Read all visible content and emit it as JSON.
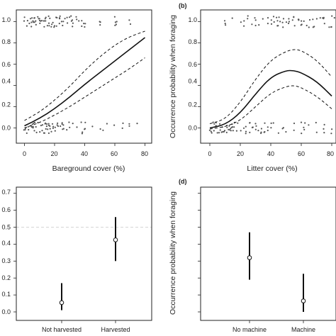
{
  "chart_data": [
    {
      "type": "line",
      "panel_label": "",
      "xlabel": "Bareground cover (%)",
      "ylabel": "",
      "xlim": [
        -3,
        88
      ],
      "ylim": [
        -0.07,
        1.07
      ],
      "xticks": [
        "0",
        "20",
        "40",
        "60",
        "80"
      ],
      "yticks": [
        "0.0",
        "0.2",
        "0.4",
        "0.6",
        "0.8",
        "1.0"
      ],
      "series": [
        {
          "style": "solid",
          "x": [
            0,
            10,
            20,
            30,
            40,
            50,
            60,
            70,
            80,
            85
          ],
          "y": [
            0.02,
            0.09,
            0.18,
            0.29,
            0.41,
            0.52,
            0.63,
            0.74,
            0.85,
            0.91
          ]
        },
        {
          "style": "dashed",
          "x": [
            0,
            10,
            20,
            30,
            40,
            50,
            60,
            70,
            80,
            85
          ],
          "y": [
            0.07,
            0.15,
            0.26,
            0.39,
            0.54,
            0.67,
            0.78,
            0.86,
            0.91,
            0.93
          ]
        },
        {
          "style": "dashed",
          "x": [
            0,
            10,
            20,
            30,
            40,
            50,
            60,
            70,
            80,
            85
          ],
          "y": [
            0.0,
            0.05,
            0.12,
            0.2,
            0.29,
            0.38,
            0.47,
            0.56,
            0.66,
            0.73
          ]
        }
      ],
      "points_top": [
        0,
        2,
        3,
        4,
        5,
        6,
        7,
        8,
        9,
        10,
        11,
        12,
        13,
        14,
        15,
        16,
        17,
        18,
        19,
        20,
        21,
        22,
        23,
        24,
        25,
        26,
        27,
        28,
        29,
        30,
        31,
        32,
        34,
        35,
        36,
        38,
        39,
        40,
        50,
        60,
        61,
        70
      ],
      "points_bottom": [
        0,
        1,
        2,
        3,
        4,
        5,
        6,
        7,
        8,
        9,
        10,
        11,
        12,
        13,
        14,
        15,
        16,
        17,
        18,
        19,
        20,
        22,
        24,
        25,
        26,
        28,
        30,
        32,
        35,
        38,
        40,
        45,
        50,
        52,
        55,
        60,
        65,
        70,
        75,
        85
      ]
    },
    {
      "type": "line",
      "panel_label": "(b)",
      "xlabel": "Litter cover (%)",
      "ylabel": "Occurrence probability when foraging",
      "xlim": [
        -3,
        85
      ],
      "ylim": [
        -0.07,
        1.07
      ],
      "xticks": [
        "0",
        "20",
        "40",
        "60",
        "80"
      ],
      "yticks": [
        "0.0",
        "0.2",
        "0.4",
        "0.6",
        "0.8",
        "1.0"
      ],
      "series": [
        {
          "style": "solid",
          "x": [
            0,
            10,
            20,
            30,
            40,
            50,
            55,
            60,
            70,
            80,
            85
          ],
          "y": [
            0.0,
            0.03,
            0.14,
            0.32,
            0.48,
            0.54,
            0.54,
            0.52,
            0.44,
            0.3,
            0.22
          ]
        },
        {
          "style": "dashed",
          "x": [
            0,
            10,
            20,
            30,
            40,
            50,
            55,
            60,
            70,
            80,
            85
          ],
          "y": [
            0.04,
            0.08,
            0.24,
            0.46,
            0.64,
            0.72,
            0.74,
            0.73,
            0.64,
            0.48,
            0.38
          ]
        },
        {
          "style": "dashed",
          "x": [
            0,
            10,
            20,
            30,
            40,
            50,
            55,
            60,
            70,
            80,
            85
          ],
          "y": [
            -0.01,
            0.01,
            0.07,
            0.2,
            0.33,
            0.39,
            0.4,
            0.38,
            0.3,
            0.18,
            0.11
          ]
        }
      ],
      "points_top": [
        10,
        15,
        20,
        22,
        25,
        28,
        30,
        32,
        35,
        38,
        40,
        42,
        44,
        45,
        46,
        48,
        50,
        52,
        54,
        55,
        56,
        58,
        60,
        62,
        64,
        65,
        66,
        68,
        70,
        72,
        74,
        75,
        78,
        80,
        82,
        84
      ],
      "points_bottom": [
        0,
        1,
        2,
        3,
        4,
        5,
        6,
        7,
        8,
        9,
        10,
        11,
        12,
        13,
        14,
        15,
        16,
        18,
        20,
        22,
        24,
        26,
        28,
        30,
        32,
        34,
        36,
        38,
        40,
        42,
        45,
        48,
        50,
        55,
        60,
        62,
        65,
        70,
        75,
        80,
        84
      ]
    },
    {
      "type": "scatter",
      "panel_label": "",
      "xlabel": "",
      "ylabel": "",
      "ylim": [
        0,
        0.7
      ],
      "yticks": [
        "0.0",
        "0.1",
        "0.2",
        "0.3",
        "0.4",
        "0.5",
        "0.6",
        "0.7"
      ],
      "reference_line": 0.5,
      "categories": [
        "Not harvested",
        "Harvested"
      ],
      "values": [
        0.055,
        0.425
      ],
      "lower": [
        0.01,
        0.3
      ],
      "upper": [
        0.17,
        0.56
      ]
    },
    {
      "type": "scatter",
      "panel_label": "(d)",
      "xlabel": "",
      "ylabel": "Occurrence probability when foraging",
      "ylim": [
        0,
        0.7
      ],
      "yticks": [],
      "categories": [
        "No machine",
        "Machine"
      ],
      "values": [
        0.32,
        0.065
      ],
      "lower": [
        0.19,
        0.0
      ],
      "upper": [
        0.47,
        0.225
      ]
    }
  ]
}
